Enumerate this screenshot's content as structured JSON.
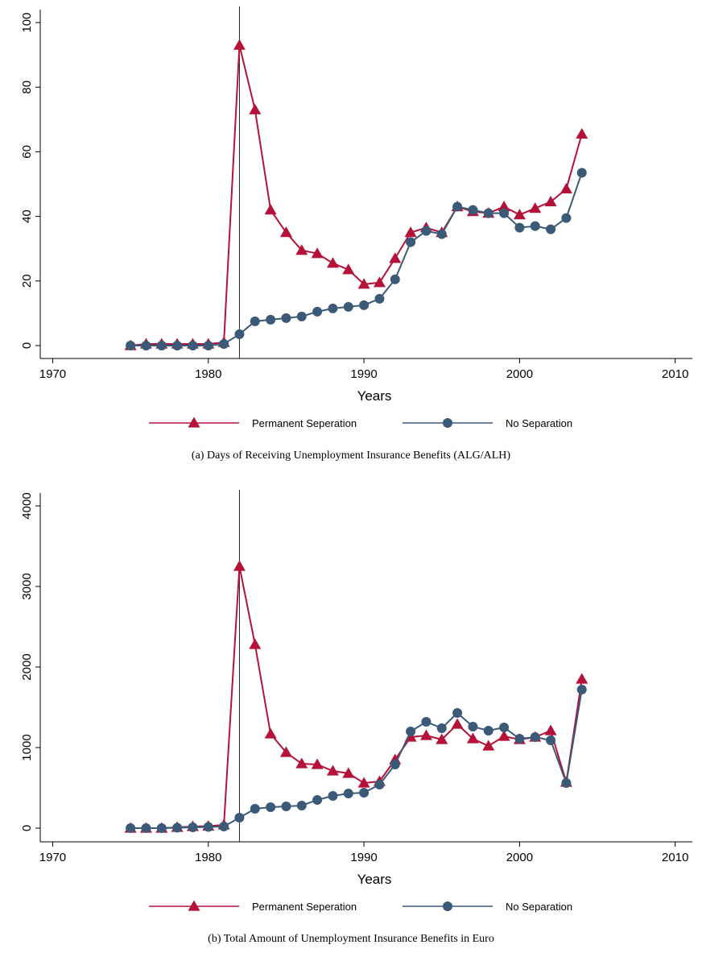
{
  "chart_data": [
    {
      "type": "line",
      "title": "(a) Days of Receiving Unemployment Insurance Benefits (ALG/ALH)",
      "x_label": "Years",
      "x": [
        1975,
        1976,
        1977,
        1978,
        1979,
        1980,
        1981,
        1982,
        1983,
        1984,
        1985,
        1986,
        1987,
        1988,
        1989,
        1990,
        1991,
        1992,
        1993,
        1994,
        1995,
        1996,
        1997,
        1998,
        1999,
        2000,
        2001,
        2002,
        2003,
        2004
      ],
      "series": [
        {
          "name": "Permanent Seperation",
          "color": "#b5123a",
          "marker": "triangle",
          "values": [
            0,
            0.5,
            0.5,
            0.5,
            0.5,
            0.5,
            1,
            93,
            73,
            42,
            35,
            29.5,
            28.5,
            25.5,
            23.5,
            19,
            19.5,
            27,
            35,
            36.5,
            35,
            43,
            41.5,
            41,
            43,
            40.5,
            42.5,
            44.5,
            48.5,
            65.5
          ]
        },
        {
          "name": "No Separation",
          "color": "#3b5a78",
          "marker": "circle",
          "values": [
            0,
            0,
            0,
            0,
            0,
            0,
            0.5,
            3.5,
            7.5,
            8,
            8.5,
            9,
            10.5,
            11.5,
            12,
            12.5,
            14.5,
            20.5,
            32,
            35.5,
            34.5,
            43,
            42,
            41,
            41,
            36.5,
            37,
            36,
            39.5,
            53.5
          ]
        }
      ],
      "reference_line_x": 1982,
      "xlim": [
        1969.2,
        2011.1
      ],
      "xticks": [
        1970,
        1980,
        1990,
        2000,
        2010
      ],
      "ylim": [
        -4,
        104
      ],
      "yticks": [
        0,
        20,
        40,
        60,
        80,
        100
      ]
    },
    {
      "type": "line",
      "title": "(b) Total Amount of Unemployment Insurance Benefits in Euro",
      "x_label": "Years",
      "x": [
        1975,
        1976,
        1977,
        1978,
        1979,
        1980,
        1981,
        1982,
        1983,
        1984,
        1985,
        1986,
        1987,
        1988,
        1989,
        1990,
        1991,
        1992,
        1993,
        1994,
        1995,
        1996,
        1997,
        1998,
        1999,
        2000,
        2001,
        2002,
        2003,
        2004
      ],
      "series": [
        {
          "name": "Permanent Seperation",
          "color": "#b5123a",
          "marker": "triangle",
          "values": [
            0,
            0,
            0,
            10,
            20,
            25,
            40,
            3250,
            2280,
            1170,
            940,
            800,
            790,
            710,
            680,
            560,
            580,
            850,
            1130,
            1150,
            1100,
            1290,
            1110,
            1020,
            1140,
            1100,
            1130,
            1210,
            570,
            1850
          ]
        },
        {
          "name": "No Separation",
          "color": "#3b5a78",
          "marker": "circle",
          "values": [
            0,
            0,
            0,
            5,
            10,
            15,
            20,
            130,
            240,
            260,
            270,
            280,
            350,
            400,
            430,
            440,
            540,
            790,
            1200,
            1320,
            1240,
            1430,
            1260,
            1210,
            1250,
            1110,
            1130,
            1090,
            560,
            1720
          ]
        }
      ],
      "reference_line_x": 1982,
      "xlim": [
        1969.2,
        2011.1
      ],
      "xticks": [
        1970,
        1980,
        1990,
        2000,
        2010
      ],
      "ylim": [
        -170,
        4160
      ],
      "yticks": [
        0,
        1000,
        2000,
        3000,
        4000
      ]
    }
  ]
}
